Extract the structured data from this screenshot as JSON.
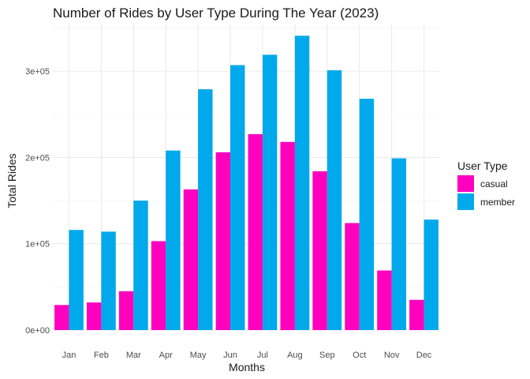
{
  "chart_data": {
    "type": "bar",
    "title": "Number of Rides by User Type During The Year (2023)",
    "xlabel": "Months",
    "ylabel": "Total Rides",
    "categories": [
      "Jan",
      "Feb",
      "Mar",
      "Apr",
      "May",
      "Jun",
      "Jul",
      "Aug",
      "Sep",
      "Oct",
      "Nov",
      "Dec"
    ],
    "series": [
      {
        "name": "casual",
        "color": "#FF00BF",
        "values": [
          29000,
          32000,
          45000,
          103000,
          163000,
          206000,
          227000,
          218000,
          184000,
          124000,
          69000,
          35000
        ]
      },
      {
        "name": "member",
        "color": "#00A9EB",
        "values": [
          116000,
          114000,
          150000,
          208000,
          279000,
          307000,
          319000,
          341000,
          301000,
          268000,
          199000,
          128000
        ]
      }
    ],
    "yticks": [
      0,
      100000,
      200000,
      300000
    ],
    "ytick_labels": [
      "0e+00",
      "1e+05",
      "2e+05",
      "3e+05"
    ],
    "ylim": [
      0,
      355000
    ],
    "grid": true,
    "legend": {
      "title": "User Type",
      "position": "right"
    }
  }
}
